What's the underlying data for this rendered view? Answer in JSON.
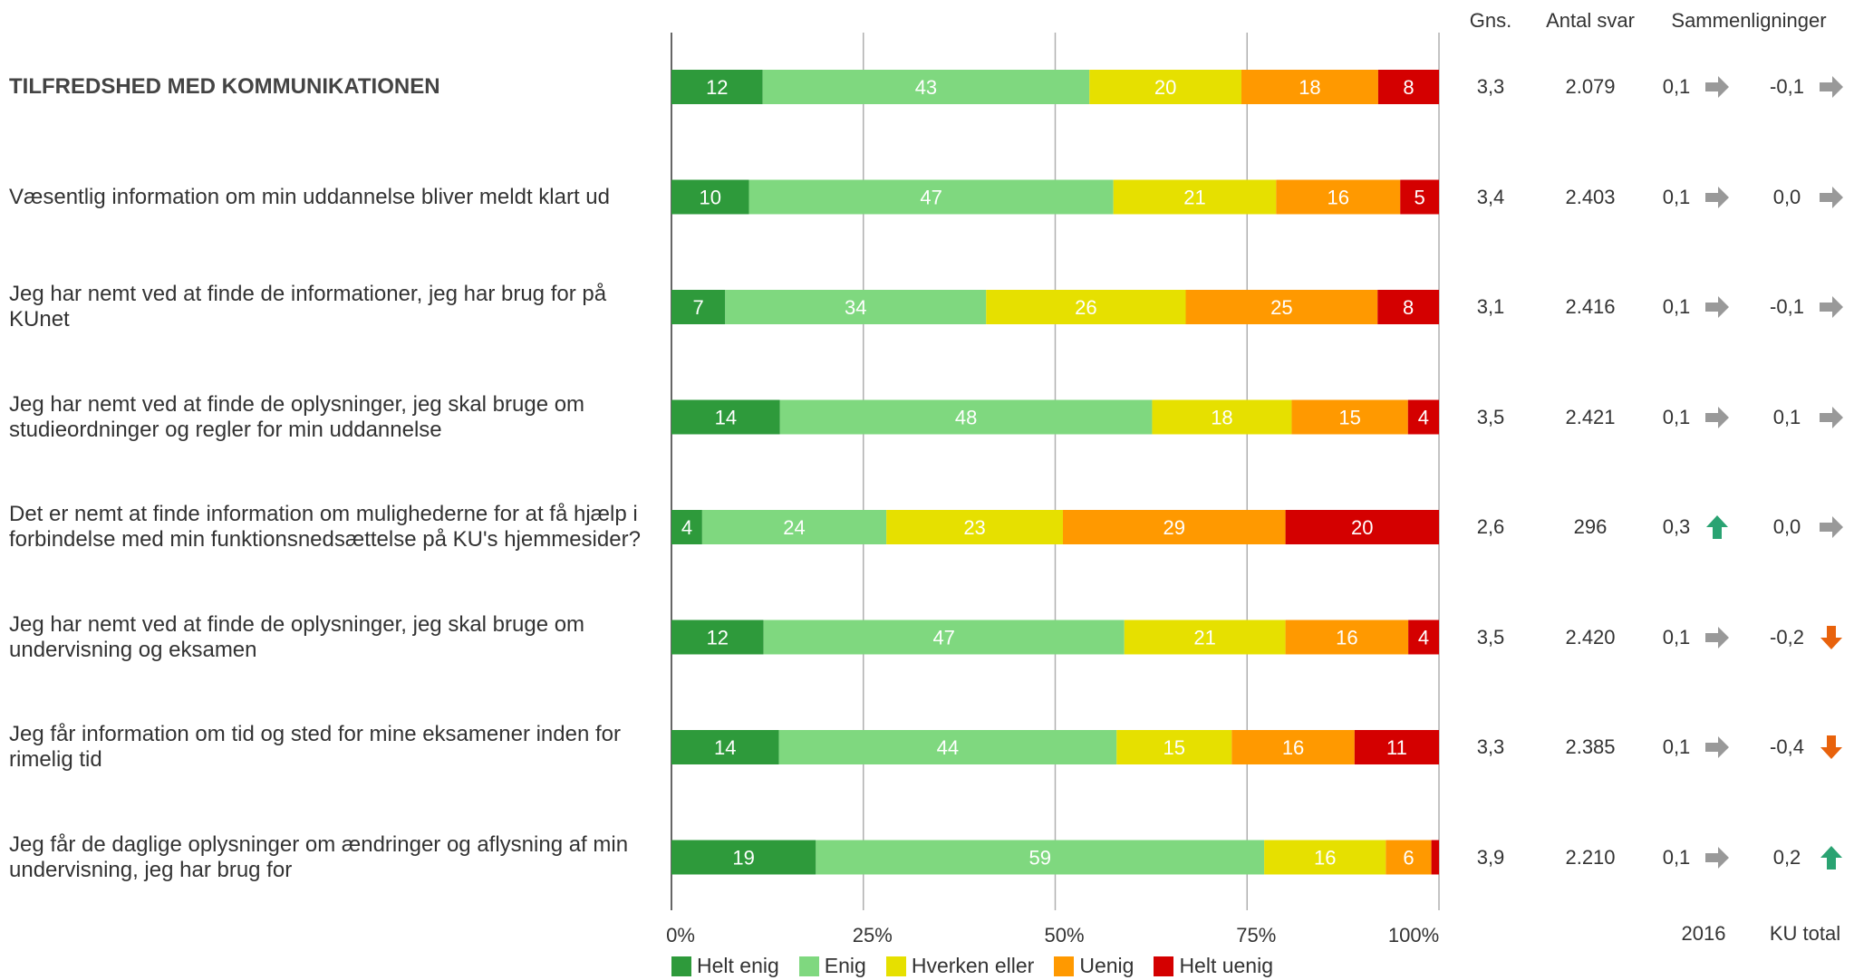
{
  "chart_data": {
    "type": "bar",
    "orientation": "horizontal-stacked-100",
    "series_names": [
      "Helt enig",
      "Enig",
      "Hverken eller",
      "Uenig",
      "Helt uenig"
    ],
    "colors": [
      "#2e9a3b",
      "#7fd87f",
      "#e6e000",
      "#ff9900",
      "#d40000"
    ],
    "x_ticks": [
      "0%",
      "25%",
      "50%",
      "75%",
      "100%"
    ],
    "xlim": [
      0,
      100
    ],
    "grid": "vertical",
    "legend_position": "bottom",
    "headers": {
      "avg": "Gns.",
      "count": "Antal svar",
      "comparisons": "Sammenligninger"
    },
    "footer": {
      "col2016": "2016",
      "colku": "KU total"
    },
    "rows": [
      {
        "label": "TILFREDSHED MED KOMMUNIKATIONEN",
        "bold": true,
        "values": [
          12,
          43,
          20,
          18,
          8
        ],
        "value_labels": [
          "12",
          "43",
          "20",
          "18",
          "8"
        ],
        "avg": "3,3",
        "count": "2.079",
        "cmp2016": "0,1",
        "arrow2016": "right",
        "cmpku": "-0,1",
        "arrowku": "right"
      },
      {
        "label": "Væsentlig information om min uddannelse bliver meldt klart ud",
        "bold": false,
        "values": [
          10,
          47,
          21,
          16,
          5
        ],
        "value_labels": [
          "10",
          "47",
          "21",
          "16",
          "5"
        ],
        "avg": "3,4",
        "count": "2.403",
        "cmp2016": "0,1",
        "arrow2016": "right",
        "cmpku": "0,0",
        "arrowku": "right"
      },
      {
        "label": "Jeg har nemt ved at finde de informationer, jeg har brug for på KUnet",
        "bold": false,
        "values": [
          7,
          34,
          26,
          25,
          8
        ],
        "value_labels": [
          "7",
          "34",
          "26",
          "25",
          "8"
        ],
        "avg": "3,1",
        "count": "2.416",
        "cmp2016": "0,1",
        "arrow2016": "right",
        "cmpku": "-0,1",
        "arrowku": "right"
      },
      {
        "label": "Jeg har nemt ved at finde de oplysninger, jeg skal bruge om studieordninger og regler for min uddannelse",
        "bold": false,
        "values": [
          14,
          48,
          18,
          15,
          4
        ],
        "value_labels": [
          "14",
          "48",
          "18",
          "15",
          "4"
        ],
        "avg": "3,5",
        "count": "2.421",
        "cmp2016": "0,1",
        "arrow2016": "right",
        "cmpku": "0,1",
        "arrowku": "right"
      },
      {
        "label": "Det er nemt at finde information om mulighederne for at få hjælp i forbindelse med min funktionsnedsættelse på KU's hjemmesider?",
        "bold": false,
        "values": [
          4,
          24,
          23,
          29,
          20
        ],
        "value_labels": [
          "4",
          "24",
          "23",
          "29",
          "20"
        ],
        "avg": "2,6",
        "count": "296",
        "cmp2016": "0,3",
        "arrow2016": "up",
        "cmpku": "0,0",
        "arrowku": "right"
      },
      {
        "label": "Jeg har nemt ved at finde de oplysninger, jeg skal bruge om undervisning og eksamen",
        "bold": false,
        "values": [
          12,
          47,
          21,
          16,
          4
        ],
        "value_labels": [
          "12",
          "47",
          "21",
          "16",
          "4"
        ],
        "avg": "3,5",
        "count": "2.420",
        "cmp2016": "0,1",
        "arrow2016": "right",
        "cmpku": "-0,2",
        "arrowku": "down"
      },
      {
        "label": "Jeg får information om tid og sted for mine eksamener inden for rimelig tid",
        "bold": false,
        "values": [
          14,
          44,
          15,
          16,
          11
        ],
        "value_labels": [
          "14",
          "44",
          "15",
          "16",
          "11"
        ],
        "avg": "3,3",
        "count": "2.385",
        "cmp2016": "0,1",
        "arrow2016": "right",
        "cmpku": "-0,4",
        "arrowku": "down"
      },
      {
        "label": "Jeg får de daglige oplysninger om ændringer og aflysning af min undervisning, jeg har brug for",
        "bold": false,
        "values": [
          19,
          59,
          16,
          6,
          1
        ],
        "value_labels": [
          "19",
          "59",
          "16",
          "6",
          ""
        ],
        "avg": "3,9",
        "count": "2.210",
        "cmp2016": "0,1",
        "arrow2016": "right",
        "cmpku": "0,2",
        "arrowku": "up"
      }
    ],
    "arrow_colors": {
      "right": "#999999",
      "up": "#2aa372",
      "down": "#e8620c"
    }
  }
}
